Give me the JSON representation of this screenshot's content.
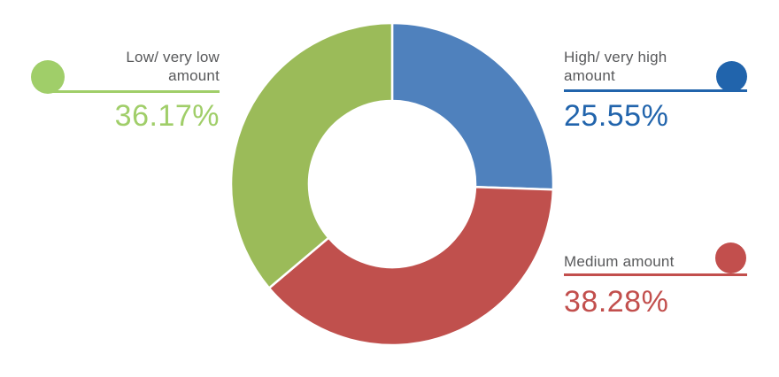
{
  "chart_data": {
    "type": "pie",
    "subtype": "donut",
    "title": "",
    "start_angle_deg": 0,
    "direction": "clockwise",
    "inner_radius_ratio": 0.515,
    "segments": [
      {
        "id": "high",
        "label": "High/ very high amount",
        "value": 25.55,
        "display": "25.55%",
        "color": "#4F81BD",
        "accent": "#2164AC"
      },
      {
        "id": "medium",
        "label": "Medium amount",
        "value": 38.28,
        "display": "38.28%",
        "color": "#C0504D",
        "accent": "#C24F4D"
      },
      {
        "id": "low",
        "label": "Low/ very low amount",
        "value": 36.17,
        "display": "36.17%",
        "color": "#9BBB59",
        "accent": "#A0CE69"
      }
    ],
    "legend_position": "callouts-left-and-right",
    "grid": false
  },
  "legends": {
    "low": {
      "label": "Low/ very low\namount",
      "percent": "36.17%"
    },
    "high": {
      "label": "High/ very high\namount",
      "percent": "25.55%"
    },
    "medium": {
      "label": "Medium amount",
      "percent": "38.28%"
    }
  },
  "colors": {
    "segment_green": "#9BBB59",
    "segment_blue": "#4F81BD",
    "segment_red": "#C0504D",
    "accent_green": "#A0CE69",
    "accent_blue": "#2164AC",
    "accent_red": "#C24F4D",
    "label_gray": "#58595B",
    "background": "#FFFFFF",
    "separator": "#FFFFFF"
  },
  "icons": {
    "low_bullet": "circle-bullet-icon",
    "high_bullet": "circle-bullet-icon",
    "medium_bullet": "circle-bullet-icon"
  }
}
